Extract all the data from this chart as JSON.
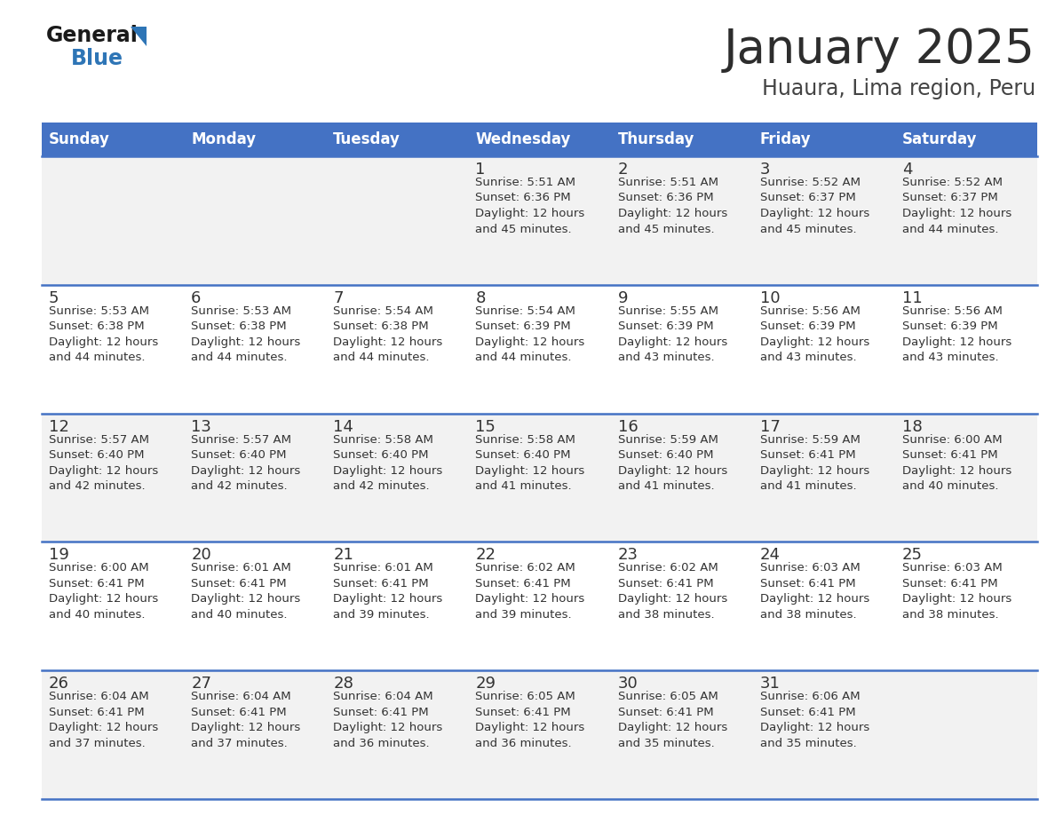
{
  "title": "January 2025",
  "subtitle": "Huaura, Lima region, Peru",
  "days_of_week": [
    "Sunday",
    "Monday",
    "Tuesday",
    "Wednesday",
    "Thursday",
    "Friday",
    "Saturday"
  ],
  "header_bg": "#4472C4",
  "header_text_color": "#FFFFFF",
  "row_bg_odd": "#F2F2F2",
  "row_bg_even": "#FFFFFF",
  "row_separator_color": "#4472C4",
  "cell_text_color": "#333333",
  "day_num_color": "#333333",
  "logo_blue": "#2E75B6",
  "logo_black": "#1a1a1a",
  "title_color": "#2d2d2d",
  "subtitle_color": "#444444",
  "calendar_data": [
    {
      "day": 1,
      "col": 3,
      "row": 0,
      "sunrise": "5:51 AM",
      "sunset": "6:36 PM",
      "daylight": "12 hours and 45 minutes."
    },
    {
      "day": 2,
      "col": 4,
      "row": 0,
      "sunrise": "5:51 AM",
      "sunset": "6:36 PM",
      "daylight": "12 hours and 45 minutes."
    },
    {
      "day": 3,
      "col": 5,
      "row": 0,
      "sunrise": "5:52 AM",
      "sunset": "6:37 PM",
      "daylight": "12 hours and 45 minutes."
    },
    {
      "day": 4,
      "col": 6,
      "row": 0,
      "sunrise": "5:52 AM",
      "sunset": "6:37 PM",
      "daylight": "12 hours and 44 minutes."
    },
    {
      "day": 5,
      "col": 0,
      "row": 1,
      "sunrise": "5:53 AM",
      "sunset": "6:38 PM",
      "daylight": "12 hours and 44 minutes."
    },
    {
      "day": 6,
      "col": 1,
      "row": 1,
      "sunrise": "5:53 AM",
      "sunset": "6:38 PM",
      "daylight": "12 hours and 44 minutes."
    },
    {
      "day": 7,
      "col": 2,
      "row": 1,
      "sunrise": "5:54 AM",
      "sunset": "6:38 PM",
      "daylight": "12 hours and 44 minutes."
    },
    {
      "day": 8,
      "col": 3,
      "row": 1,
      "sunrise": "5:54 AM",
      "sunset": "6:39 PM",
      "daylight": "12 hours and 44 minutes."
    },
    {
      "day": 9,
      "col": 4,
      "row": 1,
      "sunrise": "5:55 AM",
      "sunset": "6:39 PM",
      "daylight": "12 hours and 43 minutes."
    },
    {
      "day": 10,
      "col": 5,
      "row": 1,
      "sunrise": "5:56 AM",
      "sunset": "6:39 PM",
      "daylight": "12 hours and 43 minutes."
    },
    {
      "day": 11,
      "col": 6,
      "row": 1,
      "sunrise": "5:56 AM",
      "sunset": "6:39 PM",
      "daylight": "12 hours and 43 minutes."
    },
    {
      "day": 12,
      "col": 0,
      "row": 2,
      "sunrise": "5:57 AM",
      "sunset": "6:40 PM",
      "daylight": "12 hours and 42 minutes."
    },
    {
      "day": 13,
      "col": 1,
      "row": 2,
      "sunrise": "5:57 AM",
      "sunset": "6:40 PM",
      "daylight": "12 hours and 42 minutes."
    },
    {
      "day": 14,
      "col": 2,
      "row": 2,
      "sunrise": "5:58 AM",
      "sunset": "6:40 PM",
      "daylight": "12 hours and 42 minutes."
    },
    {
      "day": 15,
      "col": 3,
      "row": 2,
      "sunrise": "5:58 AM",
      "sunset": "6:40 PM",
      "daylight": "12 hours and 41 minutes."
    },
    {
      "day": 16,
      "col": 4,
      "row": 2,
      "sunrise": "5:59 AM",
      "sunset": "6:40 PM",
      "daylight": "12 hours and 41 minutes."
    },
    {
      "day": 17,
      "col": 5,
      "row": 2,
      "sunrise": "5:59 AM",
      "sunset": "6:41 PM",
      "daylight": "12 hours and 41 minutes."
    },
    {
      "day": 18,
      "col": 6,
      "row": 2,
      "sunrise": "6:00 AM",
      "sunset": "6:41 PM",
      "daylight": "12 hours and 40 minutes."
    },
    {
      "day": 19,
      "col": 0,
      "row": 3,
      "sunrise": "6:00 AM",
      "sunset": "6:41 PM",
      "daylight": "12 hours and 40 minutes."
    },
    {
      "day": 20,
      "col": 1,
      "row": 3,
      "sunrise": "6:01 AM",
      "sunset": "6:41 PM",
      "daylight": "12 hours and 40 minutes."
    },
    {
      "day": 21,
      "col": 2,
      "row": 3,
      "sunrise": "6:01 AM",
      "sunset": "6:41 PM",
      "daylight": "12 hours and 39 minutes."
    },
    {
      "day": 22,
      "col": 3,
      "row": 3,
      "sunrise": "6:02 AM",
      "sunset": "6:41 PM",
      "daylight": "12 hours and 39 minutes."
    },
    {
      "day": 23,
      "col": 4,
      "row": 3,
      "sunrise": "6:02 AM",
      "sunset": "6:41 PM",
      "daylight": "12 hours and 38 minutes."
    },
    {
      "day": 24,
      "col": 5,
      "row": 3,
      "sunrise": "6:03 AM",
      "sunset": "6:41 PM",
      "daylight": "12 hours and 38 minutes."
    },
    {
      "day": 25,
      "col": 6,
      "row": 3,
      "sunrise": "6:03 AM",
      "sunset": "6:41 PM",
      "daylight": "12 hours and 38 minutes."
    },
    {
      "day": 26,
      "col": 0,
      "row": 4,
      "sunrise": "6:04 AM",
      "sunset": "6:41 PM",
      "daylight": "12 hours and 37 minutes."
    },
    {
      "day": 27,
      "col": 1,
      "row": 4,
      "sunrise": "6:04 AM",
      "sunset": "6:41 PM",
      "daylight": "12 hours and 37 minutes."
    },
    {
      "day": 28,
      "col": 2,
      "row": 4,
      "sunrise": "6:04 AM",
      "sunset": "6:41 PM",
      "daylight": "12 hours and 36 minutes."
    },
    {
      "day": 29,
      "col": 3,
      "row": 4,
      "sunrise": "6:05 AM",
      "sunset": "6:41 PM",
      "daylight": "12 hours and 36 minutes."
    },
    {
      "day": 30,
      "col": 4,
      "row": 4,
      "sunrise": "6:05 AM",
      "sunset": "6:41 PM",
      "daylight": "12 hours and 35 minutes."
    },
    {
      "day": 31,
      "col": 5,
      "row": 4,
      "sunrise": "6:06 AM",
      "sunset": "6:41 PM",
      "daylight": "12 hours and 35 minutes."
    }
  ]
}
